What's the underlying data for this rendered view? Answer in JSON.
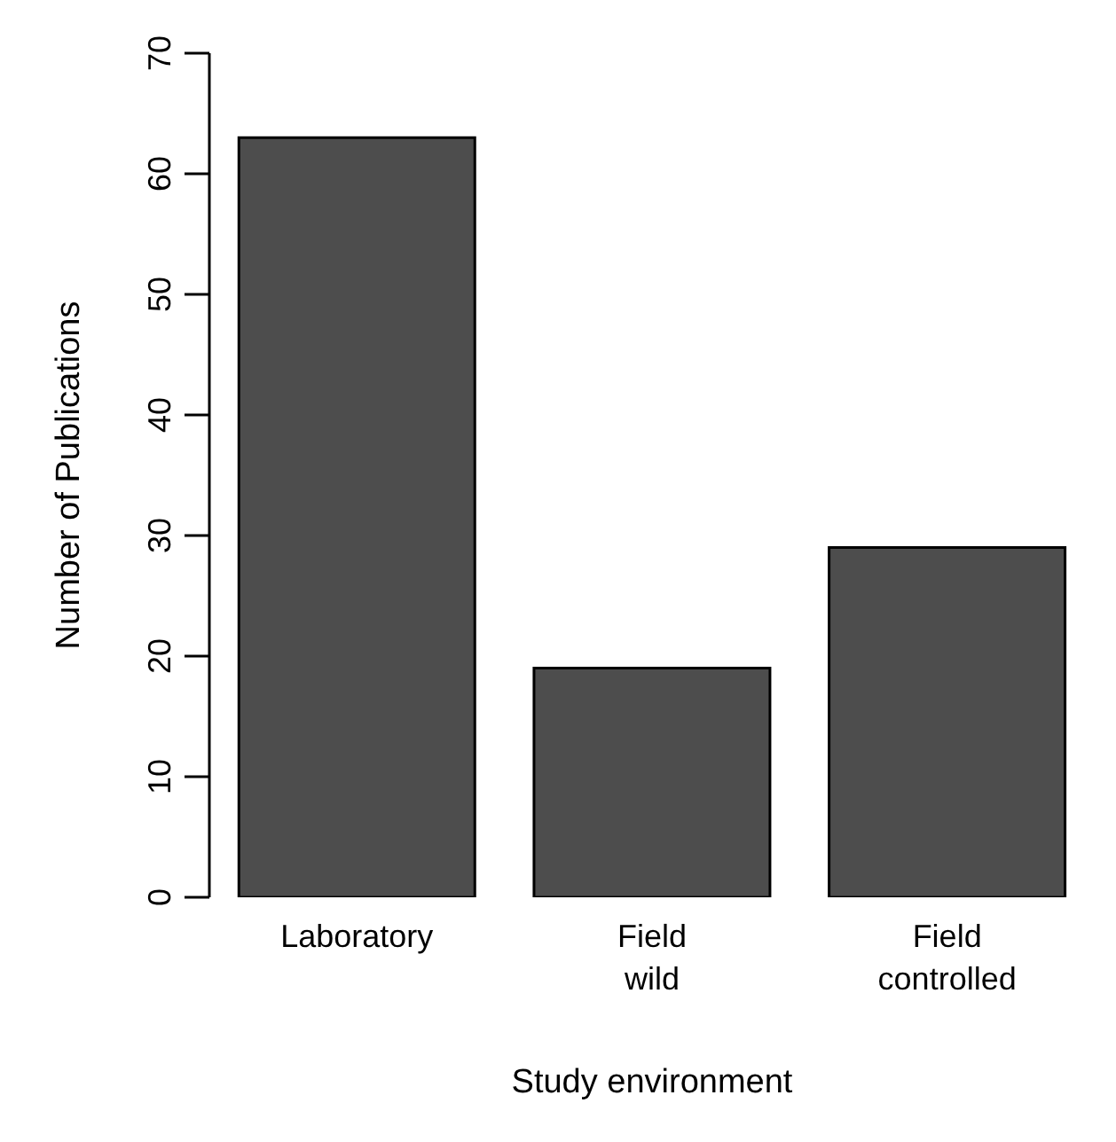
{
  "chart_data": {
    "type": "bar",
    "xlabel": "Study environment",
    "ylabel": "Number of Publications",
    "categories": [
      "Laboratory",
      "Field\nwild",
      "Field\ncontrolled"
    ],
    "values": [
      63,
      19,
      29
    ],
    "color": "#4d4d4d",
    "ylim": [
      0,
      70
    ],
    "yticks": [
      0,
      10,
      20,
      30,
      40,
      50,
      60,
      70
    ],
    "grid": false,
    "legend": false
  }
}
